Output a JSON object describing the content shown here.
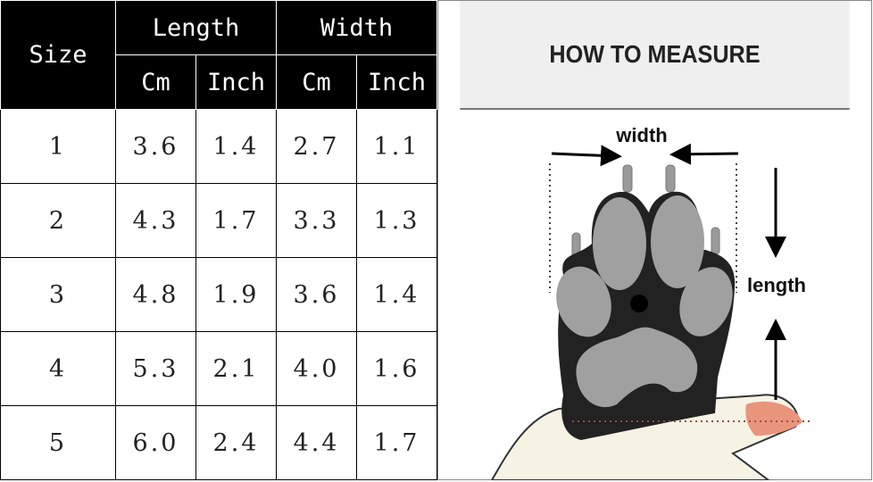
{
  "table": {
    "size_label": "Size",
    "length_label": "Length",
    "width_label": "Width",
    "units": [
      "Cm",
      "Inch",
      "Cm",
      "Inch"
    ],
    "rows": [
      [
        "1",
        "3.6",
        "1.4",
        "2.7",
        "1.1"
      ],
      [
        "2",
        "4.3",
        "1.7",
        "3.3",
        "1.3"
      ],
      [
        "3",
        "4.8",
        "1.9",
        "3.6",
        "1.4"
      ],
      [
        "4",
        "5.3",
        "2.1",
        "4.0",
        "1.6"
      ],
      [
        "5",
        "6.0",
        "2.4",
        "4.4",
        "1.7"
      ]
    ]
  },
  "measure": {
    "title": "HOW TO MEASURE",
    "width_label": "width",
    "length_label": "length"
  }
}
